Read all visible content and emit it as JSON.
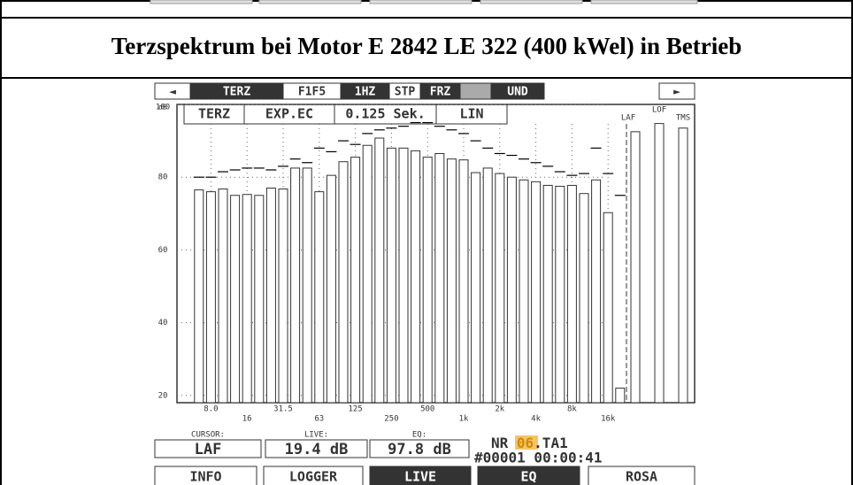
{
  "header": {
    "title": "Terzspektrum bei Motor E 2842 LE 322 (400 kWel) in Betrieb"
  },
  "toolbar": {
    "buttons": [
      "◄",
      "TERZ",
      "F1F5",
      "1HZ",
      "STP",
      "FRZ",
      "UND",
      "►"
    ]
  },
  "chart_data": {
    "type": "bar",
    "ylabel": "dB",
    "settings": [
      "TERZ",
      "EXP.EC",
      "0.125 Sek.",
      "LIN"
    ],
    "ylim": [
      18,
      100
    ],
    "yticks": [
      20,
      40,
      60,
      80,
      100
    ],
    "grid": true,
    "categories": [
      null,
      "8.0",
      null,
      null,
      "16",
      null,
      null,
      "31.5",
      null,
      null,
      "63",
      null,
      null,
      "125",
      null,
      null,
      "250",
      null,
      null,
      "500",
      null,
      null,
      "1k",
      null,
      null,
      "2k",
      null,
      null,
      "4k",
      null,
      null,
      "8k",
      null,
      null,
      "16k",
      null
    ],
    "series": [
      {
        "color": "#ffffff",
        "values": [
          76.5,
          76,
          76.75,
          75,
          75.25,
          75,
          77,
          76.75,
          82.5,
          82.5,
          76,
          80.5,
          84.25,
          85.5,
          88.75,
          90.75,
          88,
          88,
          87.25,
          85.5,
          86.5,
          85,
          84.75,
          81.25,
          82.5,
          81,
          80,
          79.25,
          78.75,
          77.75,
          77.5,
          77.75,
          75.5,
          79.25,
          70.25,
          22
        ]
      },
      {
        "color": "#000000",
        "values": [
          80,
          80,
          81.5,
          82,
          82.5,
          82.5,
          82,
          83,
          85,
          84,
          88,
          87,
          90,
          89,
          92,
          93,
          93.5,
          94,
          95,
          95,
          94,
          93,
          92,
          90,
          88,
          86.5,
          86,
          85,
          84,
          83,
          81.5,
          80.5,
          81,
          88,
          81,
          75
        ]
      }
    ],
    "overall": {
      "categories": [
        "LAF",
        "LOF",
        "TMS"
      ],
      "values": [
        92.5,
        94.75,
        93.5
      ]
    }
  },
  "status": {
    "cursor_label": "CURSOR:",
    "cursor": "LAF",
    "live_label": "LIVE:",
    "live": "19.4 dB",
    "eq_label": "EQ:",
    "eq": "97.8 dB",
    "nr_prefix": "NR ",
    "nr_highlight": "06",
    "nr_suffix": ".TA1",
    "record": "#00001 00:00:41"
  },
  "buttons": [
    "INFO",
    "LOGGER",
    "LIVE",
    "EQ",
    "ROSA"
  ]
}
